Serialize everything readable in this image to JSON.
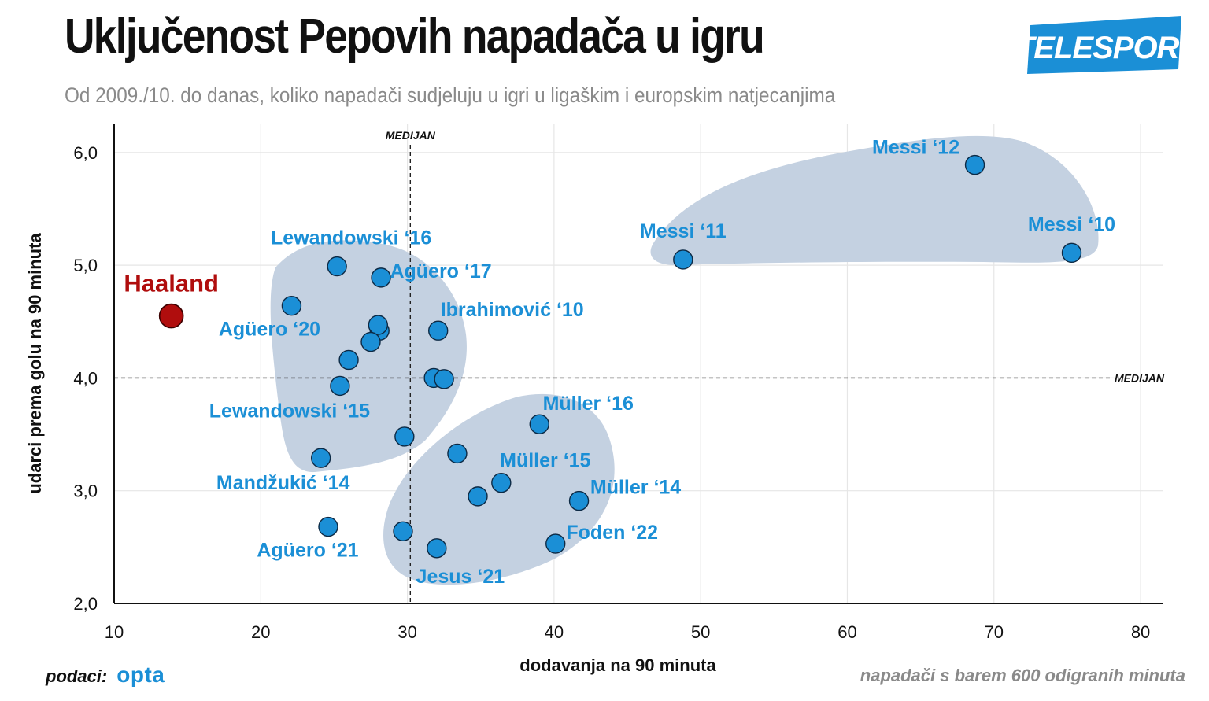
{
  "header": {
    "title": "Uključenost Pepovih napadača u igru",
    "subtitle": "Od 2009./10. do danas, koliko napadači sudjeluju u igri u ligaškim i europskim natjecanjima",
    "brand_logo_text": "TELESPORT"
  },
  "footer": {
    "source_label": "podaci:",
    "source_logo": "opta",
    "note": "napadači s barem 600 odigranih minuta"
  },
  "colors": {
    "point": "#1b8fd6",
    "highlight": "#b00d0d",
    "cluster": "#c4d1e1",
    "brand": "#1b8fd6"
  },
  "chart_data": {
    "type": "scatter",
    "xlabel": "dodavanja na 90 minuta",
    "ylabel": "udarci prema golu na 90 minuta",
    "xlim": [
      10,
      81.5
    ],
    "ylim": [
      2.0,
      6.25
    ],
    "x_ticks": [
      10,
      20,
      30,
      40,
      50,
      60,
      70,
      80
    ],
    "y_ticks": [
      2.0,
      3.0,
      4.0,
      5.0,
      6.0
    ],
    "y_tick_labels": [
      "2,0",
      "3,0",
      "4,0",
      "5,0",
      "6,0"
    ],
    "grid": true,
    "median": {
      "x": 30.2,
      "y": 4.0,
      "label": "MEDIJAN"
    },
    "highlight": {
      "name": "Haaland",
      "x": 13.9,
      "y": 4.55
    },
    "points": [
      {
        "label": "Messi ‘12",
        "x": 68.7,
        "y": 5.89
      },
      {
        "label": "Messi ‘10",
        "x": 75.3,
        "y": 5.11
      },
      {
        "label": "Messi ‘11",
        "x": 48.8,
        "y": 5.05
      },
      {
        "label": "Lewandowski ‘16",
        "x": 25.2,
        "y": 4.99
      },
      {
        "label": "Agüero ‘17",
        "x": 28.2,
        "y": 4.89
      },
      {
        "label": "Agüero ‘20",
        "x": 22.1,
        "y": 4.64
      },
      {
        "label": "",
        "x": 28.1,
        "y": 4.42
      },
      {
        "label": "",
        "x": 28.0,
        "y": 4.47
      },
      {
        "label": "Ibrahimović ‘10",
        "x": 32.1,
        "y": 4.42
      },
      {
        "label": "",
        "x": 27.5,
        "y": 4.32
      },
      {
        "label": "",
        "x": 26.0,
        "y": 4.16
      },
      {
        "label": "",
        "x": 31.8,
        "y": 4.0
      },
      {
        "label": "",
        "x": 32.5,
        "y": 3.99
      },
      {
        "label": "Lewandowski ‘15",
        "x": 25.4,
        "y": 3.93
      },
      {
        "label": "Müller ‘16",
        "x": 39.0,
        "y": 3.59
      },
      {
        "label": "",
        "x": 29.8,
        "y": 3.48
      },
      {
        "label": "",
        "x": 33.4,
        "y": 3.33
      },
      {
        "label": "Mandžukić ‘14",
        "x": 24.1,
        "y": 3.29
      },
      {
        "label": "Müller ‘15",
        "x": 36.4,
        "y": 3.07
      },
      {
        "label": "",
        "x": 34.8,
        "y": 2.95
      },
      {
        "label": "Müller ‘14",
        "x": 41.7,
        "y": 2.91
      },
      {
        "label": "Agüero ‘21",
        "x": 24.6,
        "y": 2.68
      },
      {
        "label": "",
        "x": 29.7,
        "y": 2.64
      },
      {
        "label": "Foden ‘22",
        "x": 40.1,
        "y": 2.53
      },
      {
        "label": "Jesus ‘21",
        "x": 32.0,
        "y": 2.49
      }
    ]
  }
}
